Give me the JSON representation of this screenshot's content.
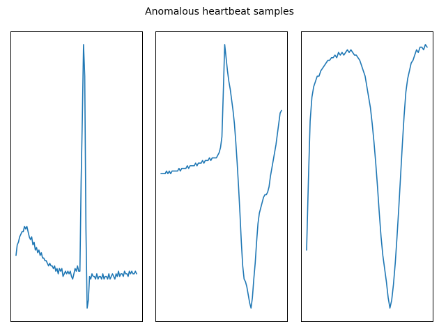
{
  "figure": {
    "title": "Anomalous heartbeat samples"
  },
  "chart_data": [
    {
      "type": "line",
      "title": "",
      "xlabel": "",
      "ylabel": "",
      "grid": false,
      "axes_visible_ticks": false,
      "line_color": "#1f77b4",
      "ylim": [
        -0.05,
        1.05
      ],
      "series": [
        {
          "values": [
            0.2,
            0.24,
            0.25,
            0.27,
            0.28,
            0.29,
            0.29,
            0.31,
            0.3,
            0.31,
            0.29,
            0.27,
            0.26,
            0.27,
            0.24,
            0.25,
            0.22,
            0.23,
            0.21,
            0.22,
            0.2,
            0.21,
            0.19,
            0.19,
            0.18,
            0.18,
            0.17,
            0.16,
            0.17,
            0.16,
            0.16,
            0.15,
            0.16,
            0.14,
            0.15,
            0.13,
            0.15,
            0.14,
            0.15,
            0.12,
            0.13,
            0.14,
            0.13,
            0.14,
            0.13,
            0.14,
            0.12,
            0.11,
            0.13,
            0.15,
            0.14,
            0.16,
            0.14,
            0.14,
            0.48,
            0.72,
            1.0,
            0.88,
            0.3,
            0.0,
            0.03,
            0.12,
            0.11,
            0.13,
            0.12,
            0.12,
            0.11,
            0.13,
            0.11,
            0.12,
            0.12,
            0.11,
            0.13,
            0.11,
            0.12,
            0.12,
            0.11,
            0.13,
            0.11,
            0.12,
            0.13,
            0.12,
            0.11,
            0.13,
            0.12,
            0.14,
            0.12,
            0.13,
            0.13,
            0.12,
            0.14,
            0.13,
            0.13,
            0.12,
            0.14,
            0.13,
            0.14,
            0.13,
            0.13,
            0.14,
            0.13
          ]
        }
      ]
    },
    {
      "type": "line",
      "title": "",
      "xlabel": "",
      "ylabel": "",
      "grid": false,
      "axes_visible_ticks": false,
      "line_color": "#1f77b4",
      "ylim": [
        -0.05,
        1.05
      ],
      "series": [
        {
          "values": [
            0.51,
            0.51,
            0.51,
            0.51,
            0.52,
            0.51,
            0.52,
            0.51,
            0.52,
            0.52,
            0.52,
            0.52,
            0.52,
            0.53,
            0.52,
            0.53,
            0.53,
            0.53,
            0.53,
            0.54,
            0.53,
            0.54,
            0.54,
            0.54,
            0.54,
            0.55,
            0.54,
            0.55,
            0.55,
            0.55,
            0.56,
            0.55,
            0.56,
            0.56,
            0.56,
            0.57,
            0.56,
            0.57,
            0.57,
            0.57,
            0.57,
            0.58,
            0.59,
            0.61,
            0.65,
            0.82,
            1.0,
            0.95,
            0.9,
            0.86,
            0.83,
            0.79,
            0.75,
            0.7,
            0.63,
            0.55,
            0.46,
            0.36,
            0.25,
            0.16,
            0.11,
            0.1,
            0.08,
            0.05,
            0.02,
            0.0,
            0.04,
            0.11,
            0.17,
            0.25,
            0.32,
            0.36,
            0.38,
            0.4,
            0.42,
            0.43,
            0.43,
            0.44,
            0.46,
            0.5,
            0.53,
            0.56,
            0.59,
            0.62,
            0.66,
            0.7,
            0.74,
            0.75
          ]
        }
      ]
    },
    {
      "type": "line",
      "title": "",
      "xlabel": "",
      "ylabel": "",
      "grid": false,
      "axes_visible_ticks": false,
      "line_color": "#1f77b4",
      "ylim": [
        -0.05,
        1.05
      ],
      "series": [
        {
          "values": [
            0.22,
            0.48,
            0.71,
            0.8,
            0.84,
            0.86,
            0.88,
            0.88,
            0.9,
            0.91,
            0.92,
            0.93,
            0.94,
            0.94,
            0.95,
            0.95,
            0.96,
            0.95,
            0.97,
            0.96,
            0.97,
            0.96,
            0.97,
            0.98,
            0.97,
            0.98,
            0.97,
            0.96,
            0.96,
            0.95,
            0.94,
            0.92,
            0.9,
            0.88,
            0.84,
            0.8,
            0.76,
            0.7,
            0.63,
            0.55,
            0.46,
            0.36,
            0.27,
            0.2,
            0.15,
            0.1,
            0.04,
            0.0,
            0.03,
            0.09,
            0.17,
            0.27,
            0.38,
            0.5,
            0.62,
            0.73,
            0.82,
            0.87,
            0.9,
            0.93,
            0.94,
            0.96,
            0.98,
            0.97,
            0.99,
            0.99,
            0.98,
            1.0,
            0.99
          ]
        }
      ]
    }
  ]
}
